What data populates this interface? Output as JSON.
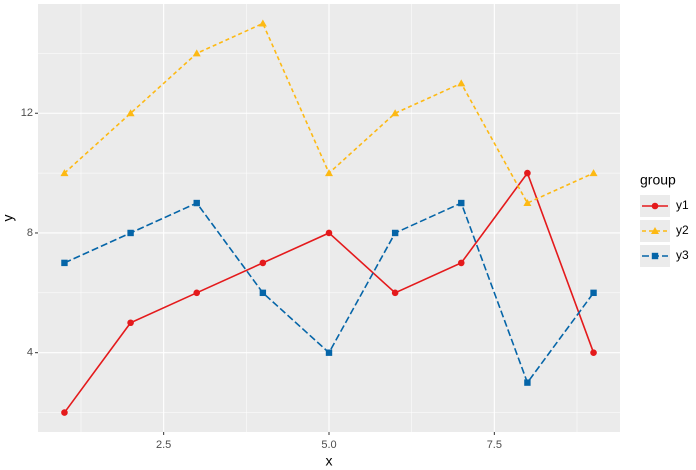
{
  "chart_data": {
    "type": "line",
    "x_label": "x",
    "y_label": "y",
    "x": [
      1,
      2,
      3,
      4,
      5,
      6,
      7,
      8,
      9
    ],
    "series": [
      {
        "name": "y1",
        "color": "#e41a1c",
        "linestyle": "solid",
        "marker": "circle",
        "values": [
          2,
          5,
          6,
          7,
          8,
          6,
          7,
          10,
          4
        ]
      },
      {
        "name": "y2",
        "color": "#fdb913",
        "linestyle": "dashed",
        "marker": "triangle",
        "values": [
          10,
          12,
          14,
          15,
          10,
          12,
          13,
          9,
          10
        ]
      },
      {
        "name": "y3",
        "color": "#0565a8",
        "linestyle": "longdash",
        "marker": "square",
        "values": [
          7,
          8,
          9,
          6,
          4,
          8,
          9,
          3,
          6
        ]
      }
    ],
    "xlim": [
      0.6,
      9.4
    ],
    "xticks": [
      2.5,
      {
        "value": 5,
        "label": "5.0"
      },
      7.5
    ],
    "ylim": [
      1.35,
      15.65
    ],
    "yticks": [
      4,
      8,
      12
    ],
    "grid": true,
    "legend_title": "group",
    "legend_position": "right"
  }
}
